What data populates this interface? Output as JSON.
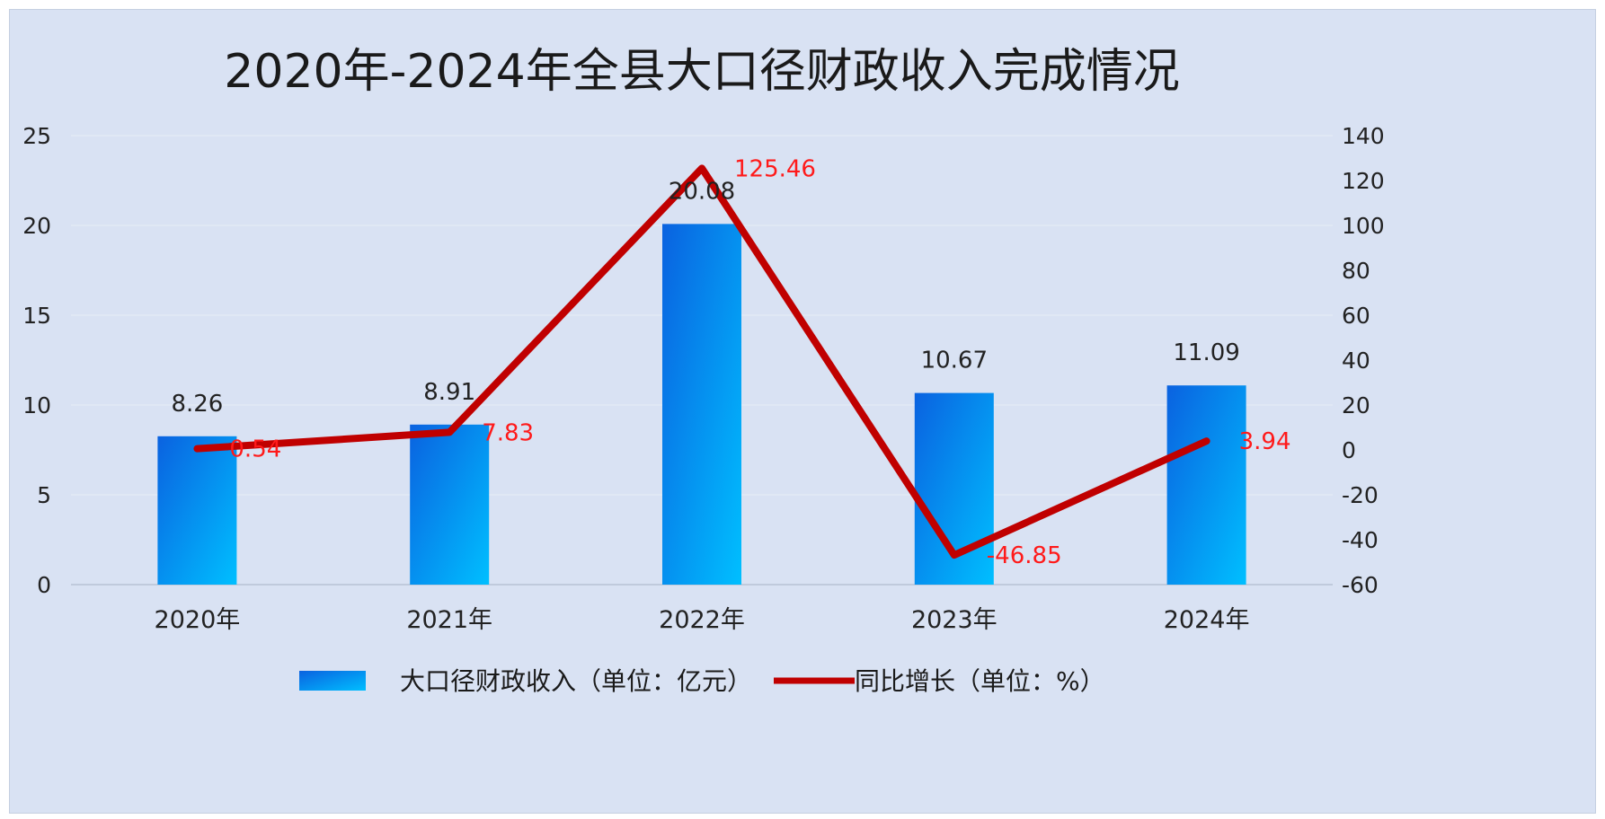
{
  "chart_data": {
    "type": "bar",
    "title": "2020年-2024年全县大口径财政收入完成情况",
    "categories": [
      "2020年",
      "2021年",
      "2022年",
      "2023年",
      "2024年"
    ],
    "ylim": [
      0,
      25
    ],
    "y_ticks": [
      "0",
      "5",
      "10",
      "15",
      "20",
      "25"
    ],
    "y2lim": [
      -60,
      140
    ],
    "y2_ticks": [
      "-60",
      "-40",
      "-20",
      "0",
      "20",
      "40",
      "60",
      "80",
      "100",
      "120",
      "140"
    ],
    "grid": true,
    "legend_position": "bottom",
    "series": [
      {
        "name": "大口径财政收入（单位：亿元）",
        "type": "bar",
        "axis": "left",
        "values": [
          8.26,
          8.91,
          20.08,
          10.67,
          11.09
        ],
        "labels": [
          "8.26",
          "8.91",
          "20.08",
          "10.67",
          "11.09"
        ],
        "color_top": "#0a62e0",
        "color_bottom": "#00bfff"
      },
      {
        "name": "同比增长（单位：%）",
        "type": "line",
        "axis": "right",
        "values": [
          0.54,
          7.83,
          125.46,
          -46.85,
          3.94
        ],
        "labels": [
          "0.54",
          "7.83",
          "125.46",
          "-46.85",
          "3.94"
        ],
        "color": "#c00000",
        "label_color": "#ff1a1a"
      }
    ]
  }
}
